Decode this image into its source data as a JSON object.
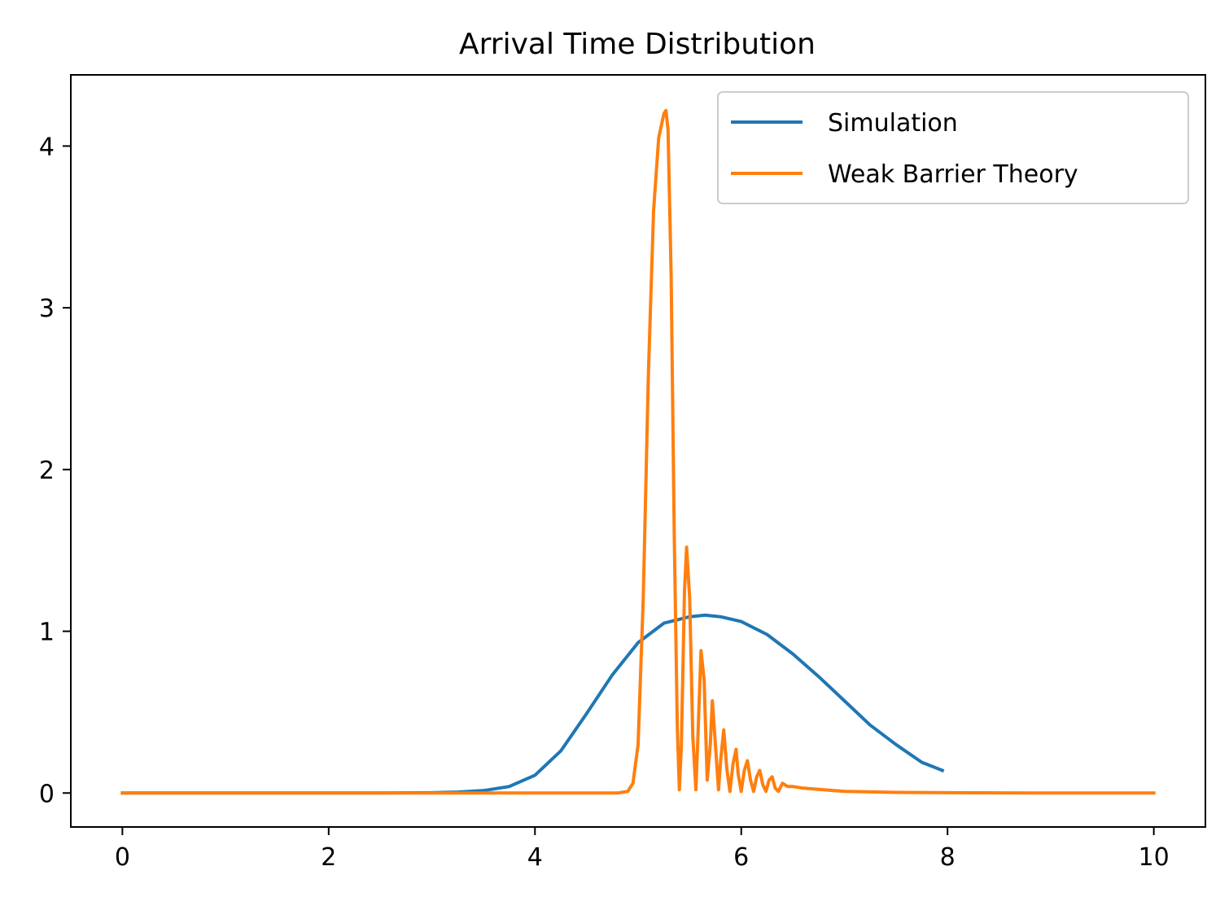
{
  "chart_data": {
    "type": "line",
    "title": "Arrival Time Distribution",
    "xlabel": "",
    "ylabel": "",
    "xlim": [
      -0.5,
      10.5
    ],
    "ylim": [
      -0.21,
      4.44
    ],
    "xticks": [
      0,
      2,
      4,
      6,
      8,
      10
    ],
    "yticks": [
      0,
      1,
      2,
      3,
      4
    ],
    "grid": false,
    "legend_position": "top-right",
    "series": [
      {
        "name": "Simulation",
        "color": "#1f77b4",
        "x": [
          0,
          0.5,
          1,
          1.5,
          2,
          2.5,
          3,
          3.25,
          3.5,
          3.75,
          4,
          4.25,
          4.5,
          4.75,
          5,
          5.25,
          5.5,
          5.65,
          5.8,
          6,
          6.25,
          6.5,
          6.75,
          7,
          7.25,
          7.5,
          7.75,
          7.95
        ],
        "y": [
          0,
          0,
          0,
          0,
          0,
          0,
          0.002,
          0.006,
          0.015,
          0.04,
          0.11,
          0.26,
          0.49,
          0.73,
          0.93,
          1.05,
          1.09,
          1.1,
          1.09,
          1.06,
          0.98,
          0.86,
          0.72,
          0.57,
          0.42,
          0.3,
          0.19,
          0.14
        ]
      },
      {
        "name": "Weak Barrier Theory",
        "color": "#ff7f0e",
        "x": [
          0,
          4.8,
          4.9,
          4.95,
          5.0,
          5.05,
          5.1,
          5.15,
          5.2,
          5.25,
          5.27,
          5.29,
          5.32,
          5.35,
          5.38,
          5.4,
          5.42,
          5.45,
          5.47,
          5.5,
          5.53,
          5.56,
          5.58,
          5.61,
          5.64,
          5.67,
          5.7,
          5.72,
          5.75,
          5.78,
          5.8,
          5.83,
          5.86,
          5.89,
          5.92,
          5.95,
          5.97,
          6.0,
          6.03,
          6.06,
          6.09,
          6.12,
          6.15,
          6.18,
          6.21,
          6.24,
          6.27,
          6.3,
          6.33,
          6.36,
          6.4,
          6.45,
          6.5,
          6.6,
          6.7,
          6.8,
          7.0,
          7.5,
          8.0,
          9.0,
          10.0
        ],
        "y": [
          0,
          0,
          0.01,
          0.06,
          0.3,
          1.2,
          2.6,
          3.6,
          4.05,
          4.2,
          4.22,
          4.1,
          3.2,
          1.6,
          0.4,
          0.02,
          0.3,
          1.25,
          1.52,
          1.2,
          0.35,
          0.02,
          0.35,
          0.88,
          0.7,
          0.08,
          0.3,
          0.57,
          0.3,
          0.02,
          0.2,
          0.39,
          0.15,
          0.01,
          0.18,
          0.27,
          0.12,
          0.01,
          0.14,
          0.2,
          0.08,
          0.01,
          0.1,
          0.14,
          0.05,
          0.01,
          0.08,
          0.1,
          0.03,
          0.01,
          0.06,
          0.04,
          0.04,
          0.03,
          0.025,
          0.02,
          0.01,
          0.004,
          0.002,
          0,
          0
        ]
      }
    ]
  }
}
